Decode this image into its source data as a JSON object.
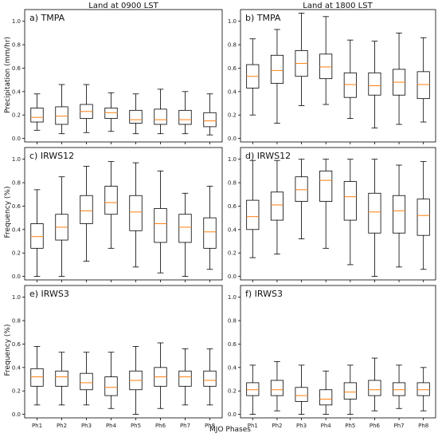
{
  "column_titles": [
    "Land at 0900 LST",
    "Land at 1800 LST"
  ],
  "row_ylabels": [
    "Precipitation (mm/hr)",
    "Frequency (%)",
    "Frequency (%)"
  ],
  "xlabel": "MJO Phases",
  "colors": {
    "median": "#ff7f0e",
    "box": "#000000",
    "frame": "#000000"
  },
  "chart_data": [
    {
      "type": "boxplot",
      "label": "a) TMPA",
      "categories": [
        "Ph1",
        "Ph2",
        "Ph3",
        "Ph4",
        "Ph5",
        "Ph6",
        "Ph7",
        "Ph8"
      ],
      "ylim": [
        -0.03,
        1.1
      ],
      "yticks": [
        "0.0",
        "0.2",
        "0.4",
        "0.6",
        "0.8",
        "1.0"
      ],
      "ytick_values": [
        0,
        0.2,
        0.4,
        0.6,
        0.8,
        1.0
      ],
      "boxes": [
        {
          "whislo": 0.07,
          "q1": 0.14,
          "med": 0.18,
          "q3": 0.26,
          "whishi": 0.38
        },
        {
          "whislo": 0.04,
          "q1": 0.12,
          "med": 0.19,
          "q3": 0.27,
          "whishi": 0.46
        },
        {
          "whislo": 0.05,
          "q1": 0.17,
          "med": 0.23,
          "q3": 0.29,
          "whishi": 0.46
        },
        {
          "whislo": 0.06,
          "q1": 0.17,
          "med": 0.22,
          "q3": 0.26,
          "whishi": 0.39
        },
        {
          "whislo": 0.04,
          "q1": 0.13,
          "med": 0.16,
          "q3": 0.24,
          "whishi": 0.38
        },
        {
          "whislo": 0.04,
          "q1": 0.12,
          "med": 0.16,
          "q3": 0.25,
          "whishi": 0.42
        },
        {
          "whislo": 0.04,
          "q1": 0.12,
          "med": 0.16,
          "q3": 0.24,
          "whishi": 0.4
        },
        {
          "whislo": 0.03,
          "q1": 0.1,
          "med": 0.15,
          "q3": 0.22,
          "whishi": 0.38
        }
      ]
    },
    {
      "type": "boxplot",
      "label": "b) TMPA",
      "categories": [
        "Ph1",
        "Ph2",
        "Ph3",
        "Ph4",
        "Ph5",
        "Ph6",
        "Ph7",
        "Ph8"
      ],
      "ylim": [
        -0.03,
        1.1
      ],
      "yticks": [
        "0.0",
        "0.2",
        "0.4",
        "0.6",
        "0.8",
        "1.0"
      ],
      "ytick_values": [
        0,
        0.2,
        0.4,
        0.6,
        0.8,
        1.0
      ],
      "boxes": [
        {
          "whislo": 0.2,
          "q1": 0.43,
          "med": 0.53,
          "q3": 0.63,
          "whishi": 0.85
        },
        {
          "whislo": 0.13,
          "q1": 0.47,
          "med": 0.58,
          "q3": 0.71,
          "whishi": 0.93
        },
        {
          "whislo": 0.28,
          "q1": 0.53,
          "med": 0.64,
          "q3": 0.75,
          "whishi": 1.07
        },
        {
          "whislo": 0.29,
          "q1": 0.51,
          "med": 0.61,
          "q3": 0.72,
          "whishi": 1.04
        },
        {
          "whislo": 0.17,
          "q1": 0.35,
          "med": 0.46,
          "q3": 0.56,
          "whishi": 0.84
        },
        {
          "whislo": 0.09,
          "q1": 0.37,
          "med": 0.45,
          "q3": 0.56,
          "whishi": 0.83
        },
        {
          "whislo": 0.12,
          "q1": 0.37,
          "med": 0.48,
          "q3": 0.59,
          "whishi": 0.9
        },
        {
          "whislo": 0.14,
          "q1": 0.34,
          "med": 0.46,
          "q3": 0.57,
          "whishi": 0.86
        }
      ]
    },
    {
      "type": "boxplot",
      "label": "c) IRWS12",
      "categories": [
        "Ph1",
        "Ph2",
        "Ph3",
        "Ph4",
        "Ph5",
        "Ph6",
        "Ph7",
        "Ph8"
      ],
      "ylim": [
        -0.03,
        1.1
      ],
      "yticks": [
        "0.0",
        "0.2",
        "0.4",
        "0.6",
        "0.8",
        "1.0"
      ],
      "ytick_values": [
        0,
        0.2,
        0.4,
        0.6,
        0.8,
        1.0
      ],
      "boxes": [
        {
          "whislo": 0.0,
          "q1": 0.24,
          "med": 0.34,
          "q3": 0.45,
          "whishi": 0.74
        },
        {
          "whislo": 0.0,
          "q1": 0.31,
          "med": 0.42,
          "q3": 0.53,
          "whishi": 0.85
        },
        {
          "whislo": 0.13,
          "q1": 0.45,
          "med": 0.56,
          "q3": 0.69,
          "whishi": 0.94
        },
        {
          "whislo": 0.24,
          "q1": 0.53,
          "med": 0.63,
          "q3": 0.77,
          "whishi": 0.98
        },
        {
          "whislo": 0.08,
          "q1": 0.39,
          "med": 0.55,
          "q3": 0.69,
          "whishi": 0.97
        },
        {
          "whislo": 0.03,
          "q1": 0.29,
          "med": 0.45,
          "q3": 0.58,
          "whishi": 0.9
        },
        {
          "whislo": 0.0,
          "q1": 0.29,
          "med": 0.42,
          "q3": 0.53,
          "whishi": 0.71
        },
        {
          "whislo": 0.06,
          "q1": 0.24,
          "med": 0.38,
          "q3": 0.5,
          "whishi": 0.77
        }
      ]
    },
    {
      "type": "boxplot",
      "label": "d) IRWS12",
      "categories": [
        "Ph1",
        "Ph2",
        "Ph3",
        "Ph4",
        "Ph5",
        "Ph6",
        "Ph7",
        "Ph8"
      ],
      "ylim": [
        -0.03,
        1.1
      ],
      "yticks": [
        "0.0",
        "0.2",
        "0.4",
        "0.6",
        "0.8",
        "1.0"
      ],
      "ytick_values": [
        0,
        0.2,
        0.4,
        0.6,
        0.8,
        1.0
      ],
      "boxes": [
        {
          "whislo": 0.16,
          "q1": 0.4,
          "med": 0.51,
          "q3": 0.65,
          "whishi": 0.99
        },
        {
          "whislo": 0.19,
          "q1": 0.48,
          "med": 0.61,
          "q3": 0.72,
          "whishi": 0.99
        },
        {
          "whislo": 0.32,
          "q1": 0.64,
          "med": 0.74,
          "q3": 0.85,
          "whishi": 1.0
        },
        {
          "whislo": 0.24,
          "q1": 0.64,
          "med": 0.82,
          "q3": 0.9,
          "whishi": 1.0
        },
        {
          "whislo": 0.1,
          "q1": 0.48,
          "med": 0.68,
          "q3": 0.81,
          "whishi": 1.0
        },
        {
          "whislo": 0.0,
          "q1": 0.37,
          "med": 0.55,
          "q3": 0.71,
          "whishi": 1.0
        },
        {
          "whislo": 0.08,
          "q1": 0.37,
          "med": 0.56,
          "q3": 0.69,
          "whishi": 0.95
        },
        {
          "whislo": 0.06,
          "q1": 0.35,
          "med": 0.52,
          "q3": 0.66,
          "whishi": 0.98
        }
      ]
    },
    {
      "type": "boxplot",
      "label": "e) IRWS3",
      "categories": [
        "Ph1",
        "Ph2",
        "Ph3",
        "Ph4",
        "Ph5",
        "Ph6",
        "Ph7",
        "Ph8"
      ],
      "ylim": [
        -0.03,
        1.1
      ],
      "yticks": [
        "0.0",
        "0.2",
        "0.4",
        "0.6",
        "0.8",
        "1.0"
      ],
      "ytick_values": [
        0,
        0.2,
        0.4,
        0.6,
        0.8,
        1.0
      ],
      "boxes": [
        {
          "whislo": 0.08,
          "q1": 0.24,
          "med": 0.32,
          "q3": 0.39,
          "whishi": 0.58
        },
        {
          "whislo": 0.08,
          "q1": 0.24,
          "med": 0.32,
          "q3": 0.37,
          "whishi": 0.53
        },
        {
          "whislo": 0.08,
          "q1": 0.21,
          "med": 0.27,
          "q3": 0.35,
          "whishi": 0.53
        },
        {
          "whislo": 0.05,
          "q1": 0.16,
          "med": 0.23,
          "q3": 0.32,
          "whishi": 0.53
        },
        {
          "whislo": 0.0,
          "q1": 0.21,
          "med": 0.29,
          "q3": 0.37,
          "whishi": 0.58
        },
        {
          "whislo": 0.05,
          "q1": 0.24,
          "med": 0.32,
          "q3": 0.4,
          "whishi": 0.61
        },
        {
          "whislo": 0.08,
          "q1": 0.24,
          "med": 0.32,
          "q3": 0.37,
          "whishi": 0.56
        },
        {
          "whislo": 0.08,
          "q1": 0.24,
          "med": 0.29,
          "q3": 0.37,
          "whishi": 0.56
        }
      ]
    },
    {
      "type": "boxplot",
      "label": "f) IRWS3",
      "categories": [
        "Ph1",
        "Ph2",
        "Ph3",
        "Ph4",
        "Ph5",
        "Ph6",
        "Ph7",
        "Ph8"
      ],
      "ylim": [
        -0.03,
        1.1
      ],
      "yticks": [
        "0.0",
        "0.2",
        "0.4",
        "0.6",
        "0.8",
        "1.0"
      ],
      "ytick_values": [
        0,
        0.2,
        0.4,
        0.6,
        0.8,
        1.0
      ],
      "boxes": [
        {
          "whislo": 0.0,
          "q1": 0.16,
          "med": 0.21,
          "q3": 0.27,
          "whishi": 0.42
        },
        {
          "whislo": 0.03,
          "q1": 0.16,
          "med": 0.21,
          "q3": 0.29,
          "whishi": 0.45
        },
        {
          "whislo": 0.0,
          "q1": 0.11,
          "med": 0.16,
          "q3": 0.23,
          "whishi": 0.42
        },
        {
          "whislo": 0.0,
          "q1": 0.08,
          "med": 0.13,
          "q3": 0.21,
          "whishi": 0.37
        },
        {
          "whislo": 0.0,
          "q1": 0.13,
          "med": 0.19,
          "q3": 0.27,
          "whishi": 0.42
        },
        {
          "whislo": 0.03,
          "q1": 0.16,
          "med": 0.21,
          "q3": 0.29,
          "whishi": 0.48
        },
        {
          "whislo": 0.05,
          "q1": 0.16,
          "med": 0.21,
          "q3": 0.27,
          "whishi": 0.42
        },
        {
          "whislo": 0.03,
          "q1": 0.16,
          "med": 0.21,
          "q3": 0.27,
          "whishi": 0.4
        }
      ]
    }
  ]
}
